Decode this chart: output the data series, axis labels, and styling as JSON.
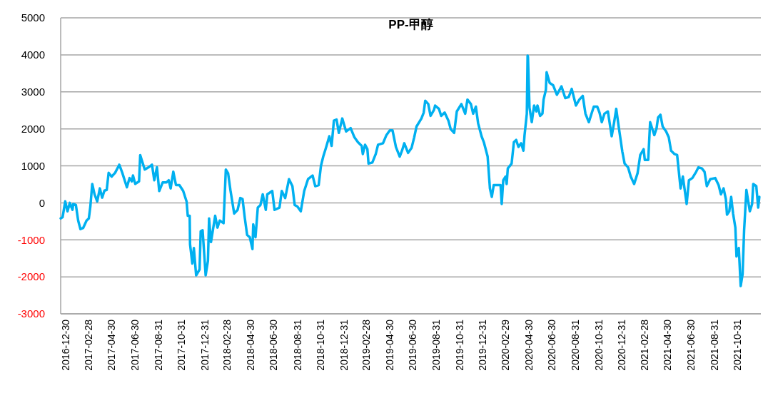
{
  "chart_data": {
    "type": "line",
    "title": "PP-甲醇",
    "xlim": [
      "2016-12-17",
      "2021-12-31"
    ],
    "xticks": [
      "2016-12-30",
      "2017-02-28",
      "2017-04-30",
      "2017-06-30",
      "2017-08-31",
      "2017-10-31",
      "2017-12-31",
      "2018-02-28",
      "2018-04-30",
      "2018-06-30",
      "2018-08-31",
      "2018-10-31",
      "2018-12-31",
      "2019-02-28",
      "2019-04-30",
      "2019-06-30",
      "2019-08-31",
      "2019-10-31",
      "2019-12-31",
      "2020-02-29",
      "2020-04-30",
      "2020-06-30",
      "2020-08-31",
      "2020-10-31",
      "2020-12-31",
      "2021-02-28",
      "2021-04-30",
      "2021-06-30",
      "2021-08-31",
      "2021-10-31"
    ],
    "ylim": [
      -3000,
      5000
    ],
    "yticks": [
      -3000,
      -2000,
      -1000,
      0,
      1000,
      2000,
      3000,
      4000,
      5000
    ],
    "grid": "y",
    "marker": "none",
    "line_style": "solid",
    "series": [
      {
        "color": "#00b0f0",
        "x": [
          "2016-12-17",
          "2016-12-22",
          "2016-12-29",
          "2017-01-04",
          "2017-01-10",
          "2017-01-17",
          "2017-01-19",
          "2017-01-26",
          "2017-02-01",
          "2017-02-07",
          "2017-02-14",
          "2017-02-23",
          "2017-03-01",
          "2017-03-05",
          "2017-03-10",
          "2017-03-16",
          "2017-03-23",
          "2017-03-30",
          "2017-04-05",
          "2017-04-11",
          "2017-04-17",
          "2017-04-22",
          "2017-04-30",
          "2017-05-09",
          "2017-05-20",
          "2017-05-28",
          "2017-06-09",
          "2017-06-16",
          "2017-06-22",
          "2017-06-25",
          "2017-07-01",
          "2017-07-11",
          "2017-07-14",
          "2017-07-26",
          "2017-08-05",
          "2017-08-14",
          "2017-08-20",
          "2017-08-27",
          "2017-09-02",
          "2017-09-11",
          "2017-09-21",
          "2017-09-27",
          "2017-10-02",
          "2017-10-09",
          "2017-10-16",
          "2017-10-25",
          "2017-11-04",
          "2017-11-13",
          "2017-11-16",
          "2017-11-21",
          "2017-11-22",
          "2017-11-28",
          "2017-12-02",
          "2017-12-08",
          "2017-12-17",
          "2017-12-20",
          "2017-12-25",
          "2018-01-02",
          "2018-01-08",
          "2018-01-11",
          "2018-01-16",
          "2018-01-21",
          "2018-01-27",
          "2018-02-02",
          "2018-02-08",
          "2018-02-18",
          "2018-02-24",
          "2018-03-02",
          "2018-03-08",
          "2018-03-18",
          "2018-03-27",
          "2018-04-03",
          "2018-04-09",
          "2018-04-15",
          "2018-04-21",
          "2018-04-28",
          "2018-05-05",
          "2018-05-07",
          "2018-05-13",
          "2018-05-19",
          "2018-05-26",
          "2018-06-01",
          "2018-06-09",
          "2018-06-13",
          "2018-06-26",
          "2018-07-02",
          "2018-07-15",
          "2018-07-21",
          "2018-07-30",
          "2018-08-09",
          "2018-08-18",
          "2018-08-24",
          "2018-08-31",
          "2018-09-09",
          "2018-09-18",
          "2018-09-28",
          "2018-10-10",
          "2018-10-17",
          "2018-10-26",
          "2018-11-01",
          "2018-11-07",
          "2018-11-14",
          "2018-11-23",
          "2018-11-29",
          "2018-12-05",
          "2018-12-12",
          "2018-12-18",
          "2018-12-27",
          "2019-01-06",
          "2019-01-18",
          "2019-01-28",
          "2019-02-06",
          "2019-02-16",
          "2019-02-19",
          "2019-02-25",
          "2019-03-03",
          "2019-03-06",
          "2019-03-16",
          "2019-03-25",
          "2019-03-31",
          "2019-04-13",
          "2019-04-22",
          "2019-05-01",
          "2019-05-08",
          "2019-05-17",
          "2019-05-27",
          "2019-06-02",
          "2019-06-08",
          "2019-06-18",
          "2019-06-27",
          "2019-07-04",
          "2019-07-10",
          "2019-07-23",
          "2019-07-29",
          "2019-08-02",
          "2019-08-10",
          "2019-08-16",
          "2019-08-25",
          "2019-08-28",
          "2019-09-07",
          "2019-09-13",
          "2019-09-22",
          "2019-10-02",
          "2019-10-08",
          "2019-10-17",
          "2019-10-24",
          "2019-11-05",
          "2019-11-15",
          "2019-11-21",
          "2019-11-30",
          "2019-12-06",
          "2019-12-13",
          "2019-12-19",
          "2019-12-28",
          "2020-01-03",
          "2020-01-13",
          "2020-01-19",
          "2020-01-24",
          "2020-01-29",
          "2020-02-07",
          "2020-02-16",
          "2020-02-19",
          "2020-02-23",
          "2020-02-29",
          "2020-03-03",
          "2020-03-06",
          "2020-03-16",
          "2020-03-22",
          "2020-03-28",
          "2020-04-03",
          "2020-04-10",
          "2020-04-16",
          "2020-04-19",
          "2020-04-25",
          "2020-04-27",
          "2020-04-28",
          "2020-05-02",
          "2020-05-08",
          "2020-05-14",
          "2020-05-20",
          "2020-05-23",
          "2020-05-30",
          "2020-06-05",
          "2020-06-08",
          "2020-06-14",
          "2020-06-16",
          "2020-06-24",
          "2020-07-03",
          "2020-07-13",
          "2020-07-25",
          "2020-08-04",
          "2020-08-13",
          "2020-08-21",
          "2020-09-01",
          "2020-09-10",
          "2020-09-19",
          "2020-09-26",
          "2020-10-05",
          "2020-10-11",
          "2020-10-18",
          "2020-10-27",
          "2020-11-02",
          "2020-11-08",
          "2020-11-15",
          "2020-11-24",
          "2020-12-04",
          "2020-12-10",
          "2020-12-16",
          "2020-12-22",
          "2021-01-01",
          "2021-01-07",
          "2021-01-16",
          "2021-01-23",
          "2021-02-01",
          "2021-02-10",
          "2021-02-17",
          "2021-02-26",
          "2021-03-01",
          "2021-03-10",
          "2021-03-15",
          "2021-03-26",
          "2021-04-01",
          "2021-04-05",
          "2021-04-11",
          "2021-04-17",
          "2021-04-26",
          "2021-05-03",
          "2021-05-09",
          "2021-05-18",
          "2021-05-25",
          "2021-06-03",
          "2021-06-09",
          "2021-06-19",
          "2021-06-25",
          "2021-07-04",
          "2021-07-14",
          "2021-07-20",
          "2021-07-29",
          "2021-08-05",
          "2021-08-11",
          "2021-08-20",
          "2021-09-02",
          "2021-09-11",
          "2021-09-17",
          "2021-09-24",
          "2021-09-30",
          "2021-10-03",
          "2021-10-09",
          "2021-10-14",
          "2021-10-19",
          "2021-10-25",
          "2021-10-28",
          "2021-11-03",
          "2021-11-08",
          "2021-11-13",
          "2021-11-17",
          "2021-11-23",
          "2021-12-02",
          "2021-12-08",
          "2021-12-11",
          "2021-12-19",
          "2021-12-24",
          "2021-12-27"
        ],
        "values": [
          -420,
          -390,
          40,
          -230,
          0,
          -190,
          -30,
          -60,
          -480,
          -710,
          -680,
          -480,
          -420,
          -100,
          510,
          230,
          40,
          390,
          140,
          330,
          350,
          810,
          710,
          810,
          1030,
          810,
          420,
          670,
          580,
          740,
          510,
          580,
          1290,
          900,
          960,
          1030,
          610,
          960,
          320,
          550,
          550,
          610,
          390,
          840,
          480,
          480,
          320,
          30,
          -350,
          -350,
          -1120,
          -1640,
          -1220,
          -1960,
          -1800,
          -770,
          -740,
          -1960,
          -1570,
          -420,
          -1060,
          -740,
          -350,
          -670,
          -480,
          -550,
          900,
          800,
          350,
          -290,
          -190,
          130,
          100,
          -420,
          -870,
          -930,
          -1250,
          -580,
          -930,
          -130,
          -60,
          230,
          -190,
          230,
          320,
          -190,
          -130,
          320,
          130,
          640,
          450,
          -60,
          -100,
          -230,
          320,
          640,
          740,
          450,
          480,
          1000,
          1250,
          1480,
          1800,
          1540,
          2220,
          2250,
          1890,
          2280,
          1930,
          2020,
          1770,
          1640,
          1540,
          1320,
          1570,
          1450,
          1060,
          1090,
          1320,
          1570,
          1610,
          1830,
          1960,
          1960,
          1510,
          1250,
          1410,
          1610,
          1350,
          1480,
          1770,
          2060,
          2280,
          2440,
          2760,
          2670,
          2350,
          2510,
          2630,
          2540,
          2350,
          2440,
          2220,
          1990,
          1890,
          2470,
          2670,
          2410,
          2790,
          2670,
          2410,
          2600,
          2150,
          1800,
          1640,
          1250,
          390,
          160,
          480,
          480,
          480,
          -30,
          610,
          710,
          510,
          930,
          1060,
          1640,
          1700,
          1510,
          1610,
          1410,
          1830,
          2410,
          3980,
          3950,
          2570,
          2180,
          2630,
          2470,
          2630,
          2350,
          2410,
          2790,
          3050,
          3530,
          3240,
          3180,
          2920,
          3150,
          2830,
          2860,
          3080,
          2630,
          2790,
          2890,
          2410,
          2180,
          2380,
          2600,
          2600,
          2440,
          2180,
          2410,
          2470,
          1800,
          2150,
          2540,
          2090,
          1380,
          1060,
          960,
          710,
          510,
          800,
          1290,
          1450,
          1160,
          1160,
          2180,
          1830,
          2020,
          2310,
          2380,
          2060,
          1930,
          1770,
          1410,
          1320,
          1290,
          390,
          710,
          -30,
          610,
          670,
          840,
          960,
          930,
          840,
          450,
          640,
          670,
          480,
          230,
          390,
          100,
          -320,
          -230,
          160,
          -290,
          -670,
          -1450,
          -1220,
          -2250,
          -1930,
          -740,
          350,
          -230,
          -30,
          510,
          450,
          -130,
          160
        ]
      }
    ]
  }
}
